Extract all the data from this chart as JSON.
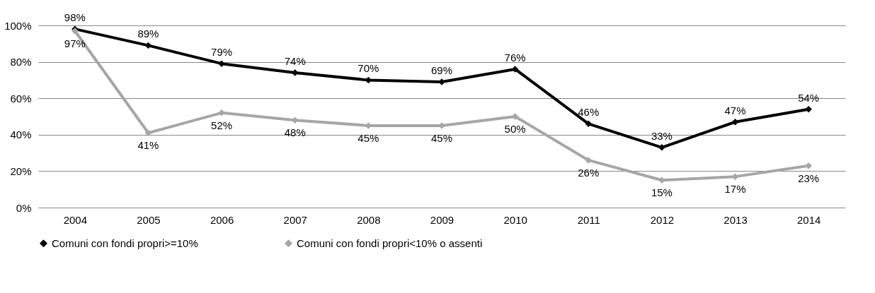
{
  "chart_data": {
    "type": "line",
    "categories": [
      "2004",
      "2005",
      "2006",
      "2007",
      "2008",
      "2009",
      "2010",
      "2011",
      "2012",
      "2013",
      "2014"
    ],
    "series": [
      {
        "name": "Comuni con fondi propri>=10%",
        "color": "#000000",
        "values": [
          98,
          89,
          79,
          74,
          70,
          69,
          76,
          46,
          33,
          47,
          54
        ],
        "value_labels": [
          "98%",
          "89%",
          "79%",
          "74%",
          "70%",
          "69%",
          "76%",
          "46%",
          "33%",
          "47%",
          "54%"
        ]
      },
      {
        "name": "Comuni con fondi propri<10% o assenti",
        "color": "#a6a6a6",
        "values": [
          97,
          41,
          52,
          48,
          45,
          45,
          50,
          26,
          15,
          17,
          23
        ],
        "value_labels": [
          "97%",
          "41%",
          "52%",
          "48%",
          "45%",
          "45%",
          "50%",
          "26%",
          "15%",
          "17%",
          "23%"
        ]
      }
    ],
    "ylim": [
      0,
      100
    ],
    "yticks": [
      {
        "value": 0,
        "label": "0%"
      },
      {
        "value": 20,
        "label": "20%"
      },
      {
        "value": 40,
        "label": "40%"
      },
      {
        "value": 60,
        "label": "60%"
      },
      {
        "value": 80,
        "label": "80%"
      },
      {
        "value": 100,
        "label": "100%"
      }
    ],
    "grid": "y",
    "legend": "bottom",
    "marker": "diamond",
    "line_style": "solid"
  }
}
